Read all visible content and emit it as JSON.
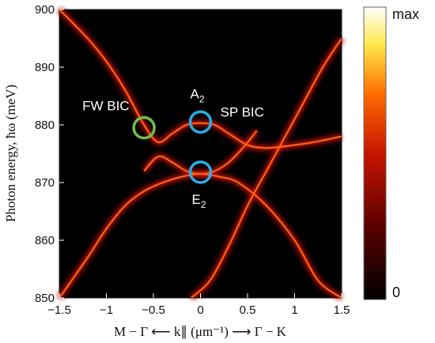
{
  "chart_data": {
    "type": "heatmap",
    "xlabel": "M − Γ ⟵ k∥ (μm⁻¹) ⟶ Γ − K",
    "ylabel": "Photon energy, ħω (meV)",
    "xlim": [
      -1.5,
      1.5
    ],
    "ylim": [
      850,
      900
    ],
    "x_ticks": [
      "−1.5",
      "−1",
      "−0.5",
      "0",
      "0.5",
      "1",
      "1.5"
    ],
    "x_tick_values": [
      -1.5,
      -1,
      -0.5,
      0,
      0.5,
      1,
      1.5
    ],
    "y_ticks": [
      "850",
      "860",
      "870",
      "880",
      "890",
      "900"
    ],
    "y_tick_values": [
      850,
      860,
      870,
      880,
      890,
      900
    ],
    "colorbar": {
      "max_label": "max",
      "min_label": "0",
      "colors": [
        "#000000",
        "#5a0000",
        "#c81400",
        "#ff6a00",
        "#ffe84a",
        "#ffffff"
      ]
    },
    "bands": [
      {
        "k": [
          -1.5,
          -1.2,
          -1.0,
          -0.8,
          -0.6,
          -0.45,
          -0.3,
          -0.15,
          0,
          0.15,
          0.3,
          0.5,
          0.7,
          0.9,
          1.2,
          1.5
        ],
        "energy": [
          900,
          895,
          891,
          886,
          880,
          877,
          878.5,
          880,
          880.3,
          880,
          878.5,
          876.5,
          876,
          876.3,
          877,
          878
        ]
      },
      {
        "k": [
          -1.5,
          -1.2,
          -1.0,
          -0.8,
          -0.6,
          -0.4,
          -0.2,
          0,
          0.2,
          0.4,
          0.7,
          1.0,
          1.25,
          1.5
        ],
        "energy": [
          850,
          857,
          862,
          866,
          868.5,
          870,
          871,
          871.5,
          871,
          870,
          866,
          860,
          853,
          850
        ]
      },
      {
        "k": [
          -0.6,
          -0.45,
          -0.3,
          -0.15,
          0,
          0.15,
          0.3,
          0.45,
          0.6
        ],
        "energy": [
          872,
          874.5,
          873.5,
          872,
          871.5,
          872,
          873.5,
          876,
          879
        ]
      },
      {
        "k": [
          -0.1,
          0.1,
          0.3,
          0.5,
          0.7,
          0.9,
          1.1,
          1.3,
          1.5
        ],
        "energy": [
          850,
          853,
          859,
          866,
          872,
          878,
          884,
          890,
          895
        ]
      }
    ],
    "annotations": [
      {
        "label": "FW BIC",
        "k": -0.6,
        "energy": 879.5,
        "circle_color": "#6cc24a"
      },
      {
        "label": "A",
        "sub": "2",
        "k": 0,
        "energy": 880.5,
        "circle_color": "#29aee8"
      },
      {
        "label": "SP BIC",
        "k": 0,
        "energy": 880.5,
        "circle_color": ""
      },
      {
        "label": "E",
        "sub": "2",
        "k": 0,
        "energy": 871.8,
        "circle_color": "#29aee8"
      }
    ]
  }
}
